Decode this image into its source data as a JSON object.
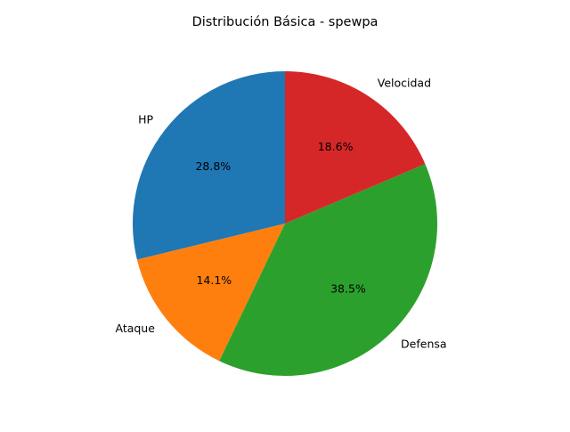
{
  "chart_data": {
    "type": "pie",
    "title": "Distribución Básica - spewpa",
    "categories": [
      "HP",
      "Ataque",
      "Defensa",
      "Velocidad"
    ],
    "values": [
      28.8,
      14.1,
      38.5,
      18.6
    ],
    "value_labels": [
      "28.8%",
      "14.1%",
      "38.5%",
      "18.6%"
    ],
    "colors": [
      "#1f77b4",
      "#ff7f0e",
      "#2ca02c",
      "#d62728"
    ],
    "start_angle_deg": 90,
    "direction": "counterclockwise",
    "legend": "none"
  }
}
